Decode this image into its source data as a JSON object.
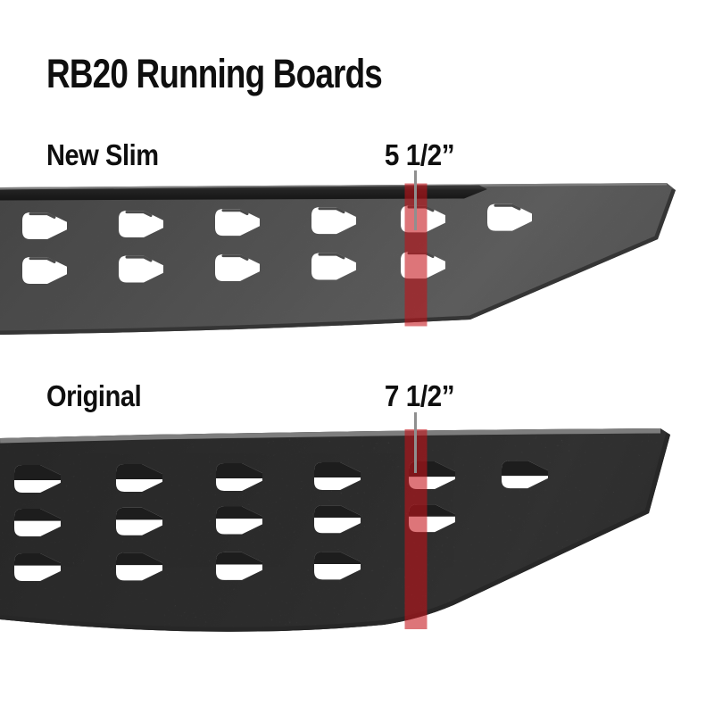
{
  "title": "RB20 Running Boards",
  "boards": [
    {
      "label": "New Slim",
      "measurement": "5 1/2”"
    },
    {
      "label": "Original",
      "measurement": "7 1/2”"
    }
  ],
  "colors": {
    "band_fill": "rgba(197,18,24,0.58)",
    "pointer": "#8f8f8f",
    "text": "#0f0f0f"
  }
}
